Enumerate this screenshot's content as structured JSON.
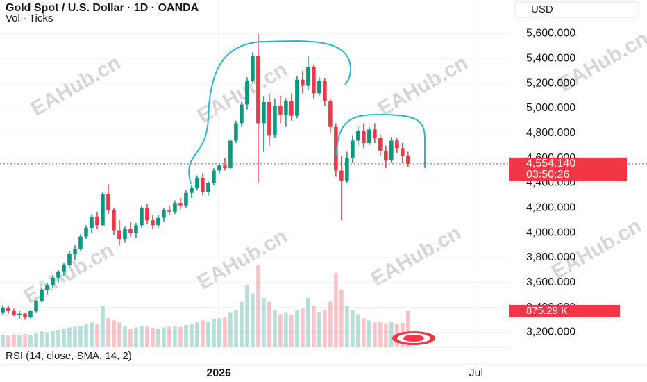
{
  "chart_data": {
    "type": "candlestick",
    "title": "Gold Spot / U.S. Dollar · 1D · OANDA",
    "subtitle": "Vol · Ticks",
    "currency": "USD",
    "indicator": "RSI (14, close, SMA, 14, 2)",
    "watermark": "EAHub.cn",
    "up_color": "#089981",
    "down_color": "#f23645",
    "ylim": [
      3080,
      5870
    ],
    "yticks": [
      {
        "value": 3200,
        "label": "3,200.000"
      },
      {
        "value": 3400,
        "label": "3,400.000"
      },
      {
        "value": 3600,
        "label": "3,600.000"
      },
      {
        "value": 3800,
        "label": "3,800.000"
      },
      {
        "value": 4000,
        "label": "4,000.000"
      },
      {
        "value": 4200,
        "label": "4,200.000"
      },
      {
        "value": 4400,
        "label": "4,400.000"
      },
      {
        "value": 4600,
        "label": "4,600.000"
      },
      {
        "value": 4800,
        "label": "4,800.000"
      },
      {
        "value": 5000,
        "label": "5,000.000"
      },
      {
        "value": 5200,
        "label": "5,200.000"
      },
      {
        "value": 5400,
        "label": "5,400.000"
      },
      {
        "value": 5600,
        "label": "5,600.000"
      }
    ],
    "xlim": [
      -0.5,
      91.4
    ],
    "xticks": [
      {
        "value": 38.9,
        "label": "2026"
      },
      {
        "value": 85.25,
        "label": "Jul"
      }
    ],
    "volume_ylim": [
      0,
      2100
    ],
    "last_price": {
      "value": 4554.14,
      "label": "4,554.140"
    },
    "countdown": "03:50:26",
    "last_volume_label": "875.29 K",
    "candles": [
      [
        3360,
        3420,
        3340,
        3400
      ],
      [
        3400,
        3410,
        3350,
        3370
      ],
      [
        3370,
        3390,
        3330,
        3340
      ],
      [
        3340,
        3370,
        3310,
        3350
      ],
      [
        3350,
        3360,
        3300,
        3320
      ],
      [
        3320,
        3380,
        3310,
        3370
      ],
      [
        3370,
        3460,
        3360,
        3450
      ],
      [
        3450,
        3560,
        3440,
        3540
      ],
      [
        3540,
        3600,
        3500,
        3580
      ],
      [
        3580,
        3660,
        3560,
        3640
      ],
      [
        3640,
        3700,
        3600,
        3690
      ],
      [
        3690,
        3760,
        3650,
        3740
      ],
      [
        3740,
        3850,
        3720,
        3830
      ],
      [
        3830,
        3900,
        3780,
        3870
      ],
      [
        3870,
        3990,
        3850,
        3970
      ],
      [
        3970,
        4060,
        3950,
        4040
      ],
      [
        4040,
        4150,
        4000,
        4130
      ],
      [
        4130,
        4170,
        4030,
        4060
      ],
      [
        4060,
        4330,
        4050,
        4310
      ],
      [
        4310,
        4390,
        4150,
        4180
      ],
      [
        4180,
        4200,
        3980,
        4020
      ],
      [
        4020,
        4100,
        3900,
        3950
      ],
      [
        3950,
        4050,
        3920,
        4030
      ],
      [
        4030,
        4090,
        3970,
        4000
      ],
      [
        4000,
        4080,
        3960,
        4060
      ],
      [
        4060,
        4220,
        4040,
        4200
      ],
      [
        4200,
        4230,
        4070,
        4100
      ],
      [
        4100,
        4140,
        4030,
        4060
      ],
      [
        4060,
        4140,
        4040,
        4120
      ],
      [
        4120,
        4200,
        4090,
        4180
      ],
      [
        4180,
        4220,
        4140,
        4170
      ],
      [
        4170,
        4260,
        4150,
        4240
      ],
      [
        4240,
        4280,
        4190,
        4220
      ],
      [
        4220,
        4340,
        4200,
        4320
      ],
      [
        4320,
        4380,
        4280,
        4360
      ],
      [
        4360,
        4460,
        4340,
        4440
      ],
      [
        4440,
        4480,
        4300,
        4330
      ],
      [
        4330,
        4420,
        4300,
        4400
      ],
      [
        4400,
        4520,
        4380,
        4500
      ],
      [
        4500,
        4560,
        4470,
        4540
      ],
      [
        4540,
        4600,
        4500,
        4520
      ],
      [
        4520,
        4750,
        4510,
        4740
      ],
      [
        4740,
        4900,
        4720,
        4880
      ],
      [
        4880,
        5050,
        4850,
        5030
      ],
      [
        5030,
        5250,
        4990,
        5220
      ],
      [
        5220,
        5450,
        5200,
        5420
      ],
      [
        5420,
        5600,
        4400,
        4880
      ],
      [
        4880,
        5100,
        4650,
        5050
      ],
      [
        5050,
        5120,
        4700,
        4780
      ],
      [
        4780,
        5080,
        4760,
        5020
      ],
      [
        5020,
        5100,
        4880,
        4950
      ],
      [
        4950,
        5080,
        4850,
        5060
      ],
      [
        5060,
        5120,
        4900,
        4940
      ],
      [
        4940,
        5260,
        4920,
        5230
      ],
      [
        5230,
        5300,
        5120,
        5180
      ],
      [
        5180,
        5420,
        5150,
        5330
      ],
      [
        5330,
        5350,
        5080,
        5120
      ],
      [
        5120,
        5250,
        5100,
        5220
      ],
      [
        5220,
        5240,
        5020,
        5060
      ],
      [
        5060,
        5080,
        4800,
        4850
      ],
      [
        4850,
        4880,
        4450,
        4500
      ],
      [
        4500,
        4620,
        4100,
        4420
      ],
      [
        4420,
        4650,
        4400,
        4600
      ],
      [
        4600,
        4780,
        4560,
        4740
      ],
      [
        4740,
        4860,
        4700,
        4820
      ],
      [
        4820,
        4880,
        4680,
        4720
      ],
      [
        4720,
        4850,
        4700,
        4830
      ],
      [
        4830,
        4880,
        4720,
        4760
      ],
      [
        4760,
        4790,
        4620,
        4660
      ],
      [
        4660,
        4700,
        4520,
        4580
      ],
      [
        4580,
        4770,
        4560,
        4740
      ],
      [
        4740,
        4760,
        4640,
        4680
      ],
      [
        4680,
        4720,
        4560,
        4620
      ],
      [
        4620,
        4650,
        4530,
        4554.14
      ]
    ],
    "volumes": [
      300,
      280,
      310,
      290,
      320,
      300,
      350,
      380,
      360,
      400,
      420,
      450,
      480,
      500,
      520,
      550,
      600,
      560,
      1000,
      700,
      650,
      600,
      500,
      450,
      480,
      520,
      500,
      470,
      450,
      480,
      500,
      520,
      490,
      540,
      560,
      600,
      650,
      620,
      680,
      700,
      720,
      850,
      900,
      1100,
      1500,
      1300,
      2000,
      1200,
      1100,
      900,
      800,
      850,
      780,
      900,
      950,
      1200,
      1000,
      850,
      900,
      1100,
      1800,
      1400,
      1000,
      900,
      800,
      700,
      650,
      600,
      620,
      580,
      600,
      560,
      590,
      875.29
    ]
  }
}
